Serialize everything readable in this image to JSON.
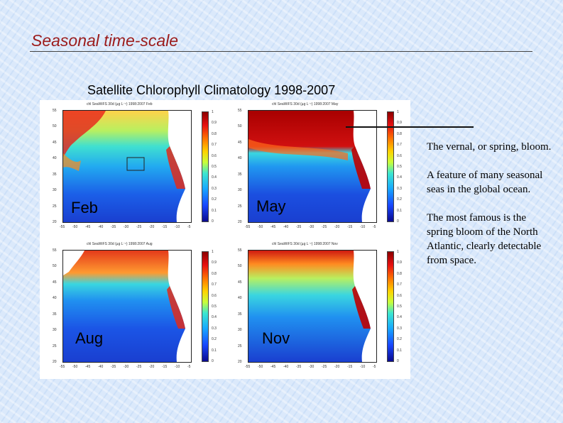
{
  "slide": {
    "title": "Seasonal time-scale",
    "figure_caption": "Satellite Chlorophyll Climatology 1998-2007"
  },
  "maps": [
    {
      "label": "Feb",
      "header": "chl SeaWiFS 30d (µg L⁻¹) 1998:2007 Feb"
    },
    {
      "label": "May",
      "header": "chl SeaWiFS 30d (µg L⁻¹) 1998:2007 May"
    },
    {
      "label": "Aug",
      "header": "chl SeaWiFS 30d (µg L⁻¹) 1998:2007 Aug"
    },
    {
      "label": "Nov",
      "header": "chl SeaWiFS 30d (µg L⁻¹) 1998:2007 Nov"
    }
  ],
  "axes": {
    "lat_ticks": [
      "55",
      "50",
      "45",
      "40",
      "35",
      "30",
      "25",
      "20"
    ],
    "lon_ticks": [
      "-55",
      "-50",
      "-45",
      "-40",
      "-35",
      "-30",
      "-25",
      "-20",
      "-15",
      "-10",
      "-5"
    ],
    "colorbar_ticks": [
      "1",
      "0.9",
      "0.8",
      "0.7",
      "0.6",
      "0.5",
      "0.4",
      "0.3",
      "0.2",
      "0.1",
      "0"
    ]
  },
  "notes": [
    "The vernal, or spring, bloom.",
    "A feature of many seasonal seas in the global ocean.",
    "The most famous is the spring bloom of the North Atlantic, clearly detectable from space."
  ],
  "colors": {
    "title": "#9b1b1b",
    "bloom_high": "#b00000",
    "ocean_low": "#1a4fd8",
    "land": "#ffffff"
  }
}
